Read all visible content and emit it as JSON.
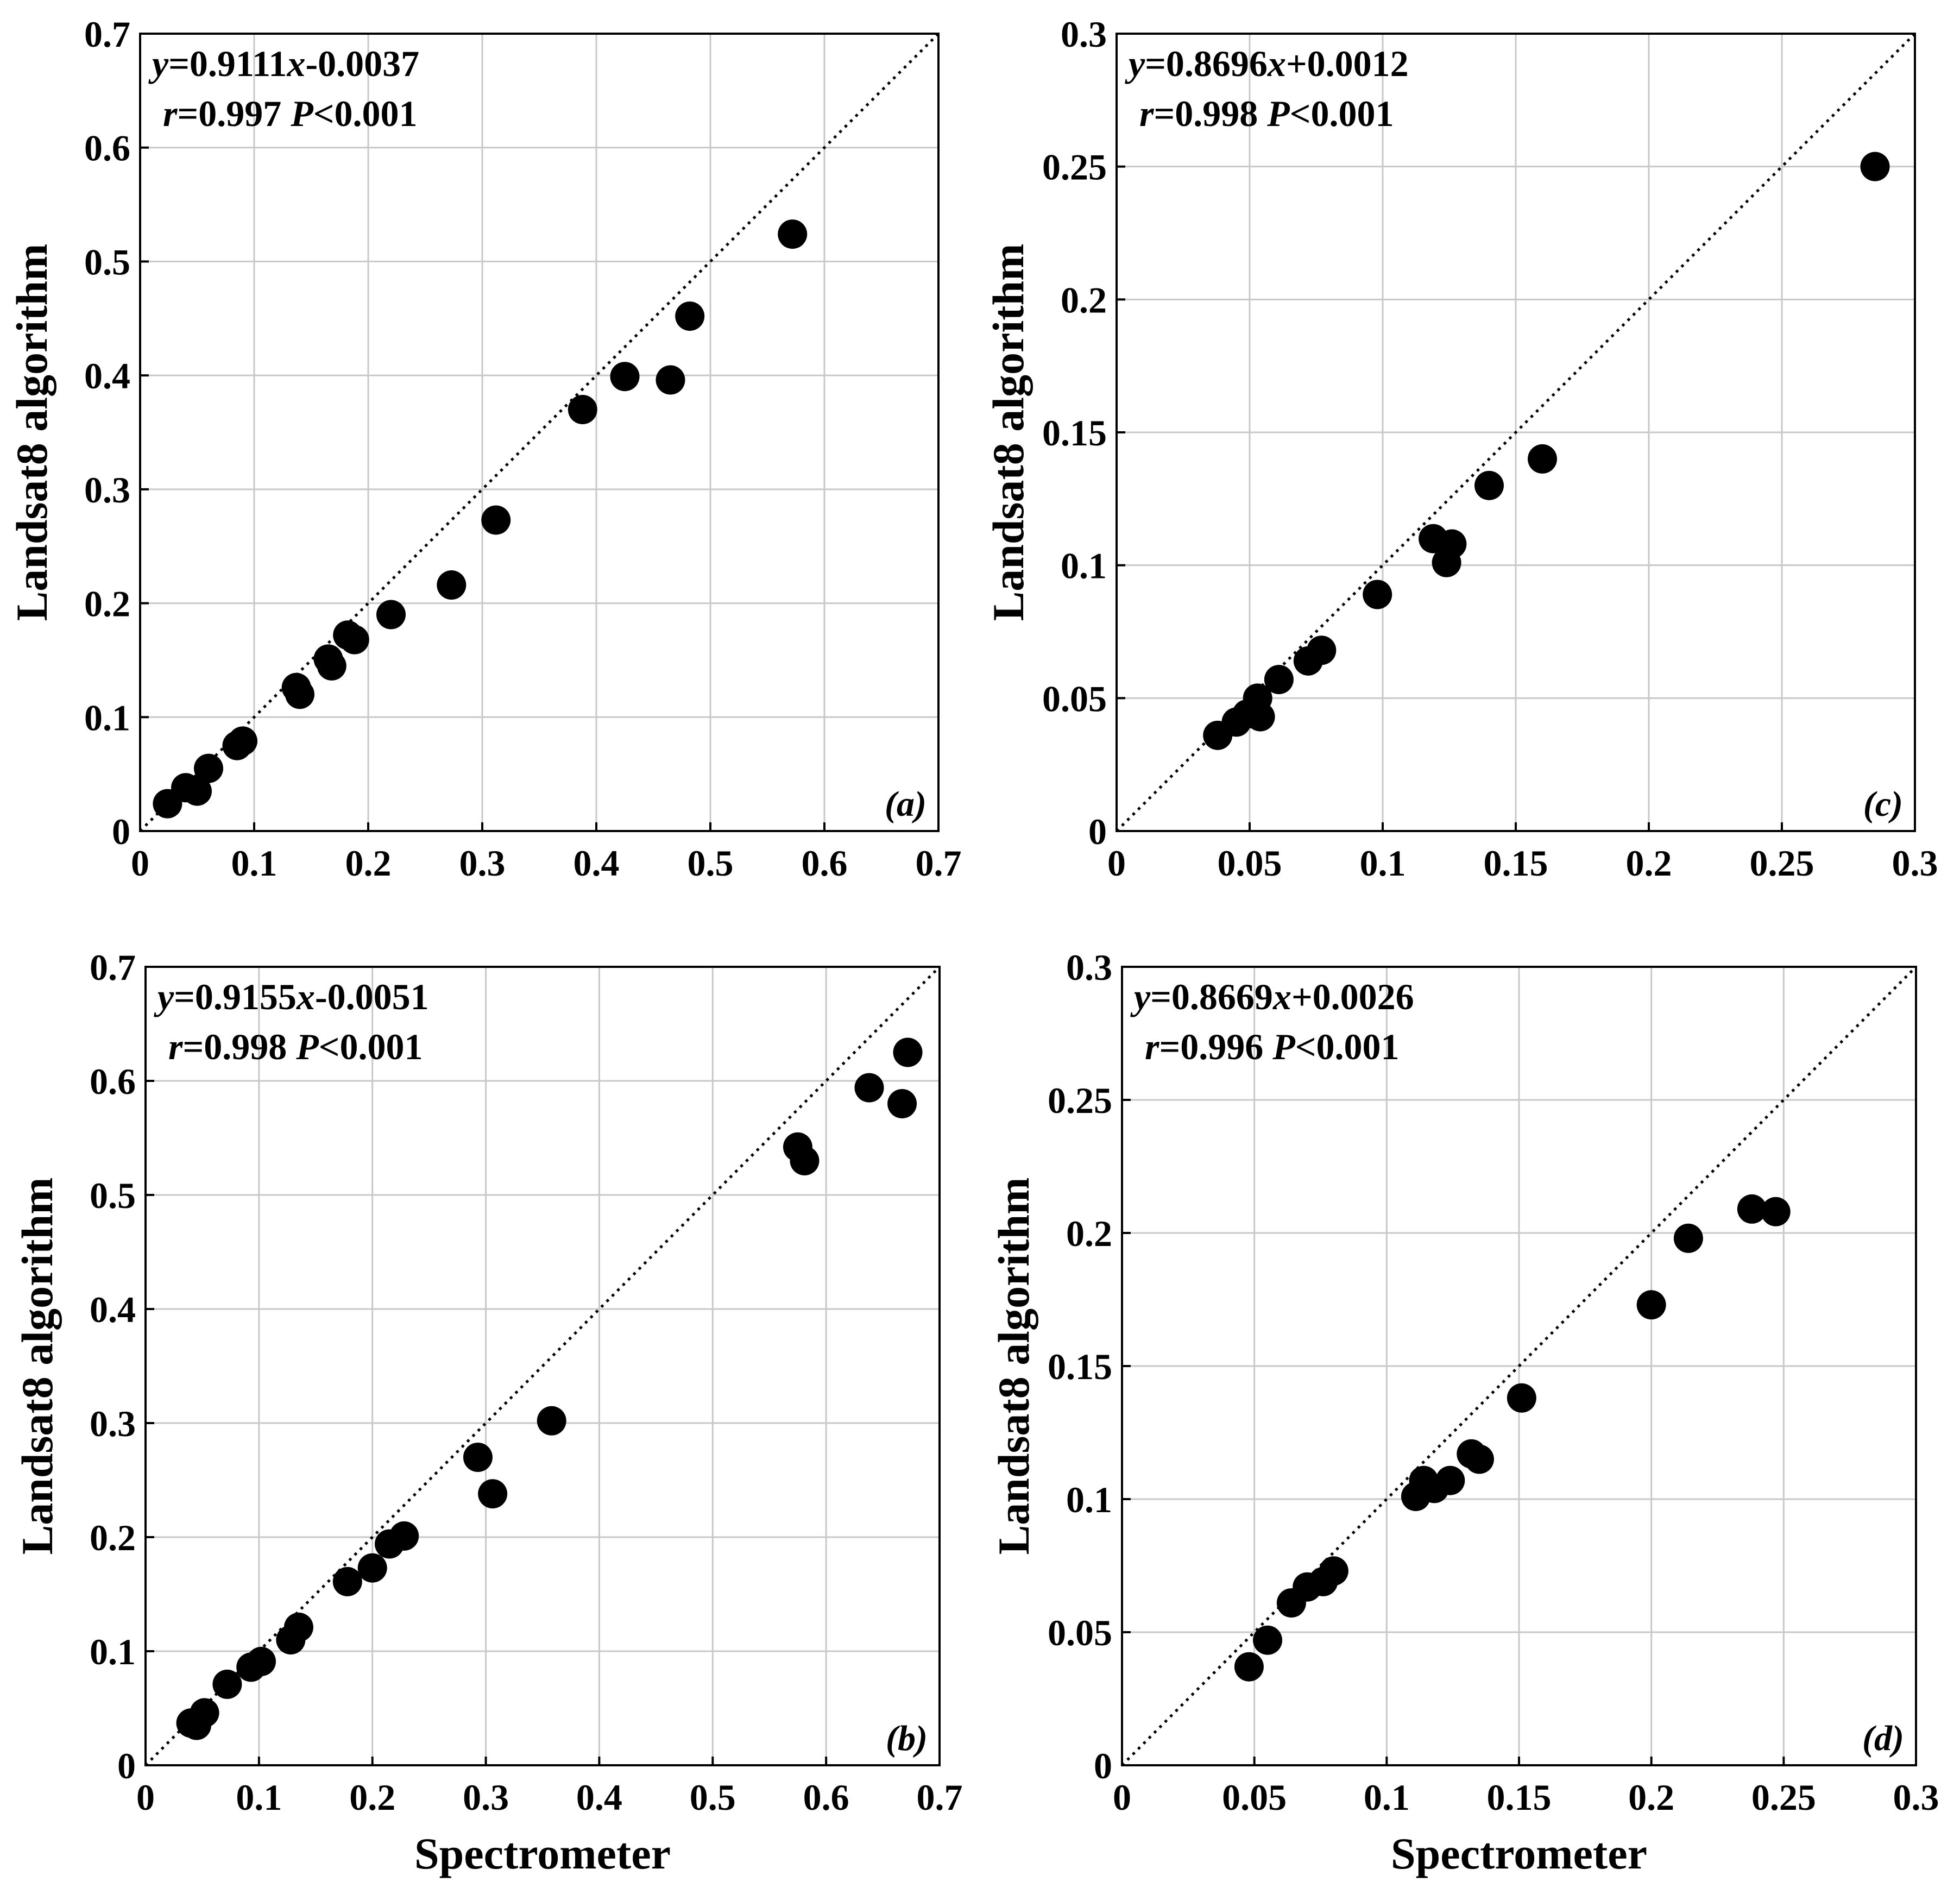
{
  "chart_data": [
    {
      "type": "scatter",
      "panel": "(a)",
      "xlabel": "",
      "ylabel": "Landsat8 algorithm",
      "xlim": [
        0,
        0.7
      ],
      "ylim": [
        0,
        0.7
      ],
      "xticks": [
        "0",
        "0.1",
        "0.2",
        "0.3",
        "0.4",
        "0.5",
        "0.6",
        "0.7"
      ],
      "yticks": [
        "0",
        "0.1",
        "0.2",
        "0.3",
        "0.4",
        "0.5",
        "0.6",
        "0.7"
      ],
      "tick_values": [
        0,
        0.1,
        0.2,
        0.3,
        0.4,
        0.5,
        0.6,
        0.7
      ],
      "equation": {
        "y": "y",
        "coef": "=0.9111",
        "x": "x",
        "intercept": "-0.0037"
      },
      "stats": {
        "r": "r",
        "r_value": "=0.997 ",
        "p": "P",
        "p_value": "<0.001"
      },
      "reference_line": "1:1",
      "x": [
        0.024,
        0.04,
        0.05,
        0.06,
        0.085,
        0.09,
        0.137,
        0.14,
        0.165,
        0.168,
        0.182,
        0.188,
        0.22,
        0.273,
        0.312,
        0.388,
        0.425,
        0.465,
        0.482,
        0.572
      ],
      "y": [
        0.024,
        0.038,
        0.035,
        0.055,
        0.075,
        0.079,
        0.126,
        0.12,
        0.151,
        0.145,
        0.172,
        0.168,
        0.19,
        0.216,
        0.273,
        0.37,
        0.399,
        0.396,
        0.452,
        0.524
      ]
    },
    {
      "type": "scatter",
      "panel": "(b)",
      "xlabel": "Spectrometer",
      "ylabel": "Landsat8 algorithm",
      "xlim": [
        0,
        0.7
      ],
      "ylim": [
        0,
        0.7
      ],
      "xticks": [
        "0",
        "0.1",
        "0.2",
        "0.3",
        "0.4",
        "0.5",
        "0.6",
        "0.7"
      ],
      "yticks": [
        "0",
        "0.1",
        "0.2",
        "0.3",
        "0.4",
        "0.5",
        "0.6",
        "0.7"
      ],
      "tick_values": [
        0,
        0.1,
        0.2,
        0.3,
        0.4,
        0.5,
        0.6,
        0.7
      ],
      "equation": {
        "y": "y",
        "coef": "=0.9155",
        "x": "x",
        "intercept": "-0.0051"
      },
      "stats": {
        "r": "r",
        "r_value": "=0.998 ",
        "p": "P",
        "p_value": "<0.001"
      },
      "reference_line": "1:1",
      "x": [
        0.04,
        0.045,
        0.052,
        0.072,
        0.093,
        0.102,
        0.128,
        0.135,
        0.178,
        0.2,
        0.215,
        0.228,
        0.293,
        0.306,
        0.358,
        0.575,
        0.581,
        0.638,
        0.667,
        0.672
      ],
      "y": [
        0.037,
        0.035,
        0.046,
        0.071,
        0.086,
        0.091,
        0.11,
        0.121,
        0.161,
        0.173,
        0.194,
        0.201,
        0.27,
        0.238,
        0.302,
        0.542,
        0.53,
        0.594,
        0.58,
        0.625
      ]
    },
    {
      "type": "scatter",
      "panel": "(c)",
      "xlabel": "",
      "ylabel": "Landsat8 algorithm",
      "xlim": [
        0,
        0.3
      ],
      "ylim": [
        0,
        0.3
      ],
      "xticks": [
        "0",
        "0.05",
        "0.1",
        "0.15",
        "0.2",
        "0.25",
        "0.3"
      ],
      "yticks": [
        "0",
        "0.05",
        "0.1",
        "0.15",
        "0.2",
        "0.25",
        "0.3"
      ],
      "tick_values": [
        0,
        0.05,
        0.1,
        0.15,
        0.2,
        0.25,
        0.3
      ],
      "equation": {
        "y": "y",
        "coef": "=0.8696",
        "x": "x",
        "intercept": "+0.0012"
      },
      "stats": {
        "r": "r",
        "r_value": "=0.998 ",
        "p": "P",
        "p_value": "<0.001"
      },
      "reference_line": "1:1",
      "x": [
        0.038,
        0.045,
        0.049,
        0.053,
        0.054,
        0.061,
        0.072,
        0.077,
        0.098,
        0.119,
        0.124,
        0.126,
        0.14,
        0.16,
        0.285
      ],
      "y": [
        0.036,
        0.041,
        0.044,
        0.05,
        0.043,
        0.057,
        0.064,
        0.068,
        0.089,
        0.11,
        0.101,
        0.108,
        0.13,
        0.14,
        0.25
      ]
    },
    {
      "type": "scatter",
      "panel": "(d)",
      "xlabel": "Spectrometer",
      "ylabel": "Landsat8 algorithm",
      "xlim": [
        0,
        0.3
      ],
      "ylim": [
        0,
        0.3
      ],
      "xticks": [
        "0",
        "0.05",
        "0.1",
        "0.15",
        "0.2",
        "0.25",
        "0.3"
      ],
      "yticks": [
        "0",
        "0.05",
        "0.1",
        "0.15",
        "0.2",
        "0.25",
        "0.3"
      ],
      "tick_values": [
        0,
        0.05,
        0.1,
        0.15,
        0.2,
        0.25,
        0.3
      ],
      "equation": {
        "y": "y",
        "coef": "=0.8669",
        "x": "x",
        "intercept": "+0.0026"
      },
      "stats": {
        "r": "r",
        "r_value": "=0.996 ",
        "p": "P",
        "p_value": "<0.001"
      },
      "reference_line": "1:1",
      "x": [
        0.048,
        0.055,
        0.064,
        0.07,
        0.076,
        0.08,
        0.111,
        0.114,
        0.118,
        0.124,
        0.132,
        0.135,
        0.151,
        0.2,
        0.214,
        0.238,
        0.247
      ],
      "y": [
        0.037,
        0.047,
        0.061,
        0.067,
        0.069,
        0.073,
        0.101,
        0.107,
        0.104,
        0.107,
        0.117,
        0.115,
        0.138,
        0.173,
        0.198,
        0.209,
        0.208
      ]
    }
  ]
}
